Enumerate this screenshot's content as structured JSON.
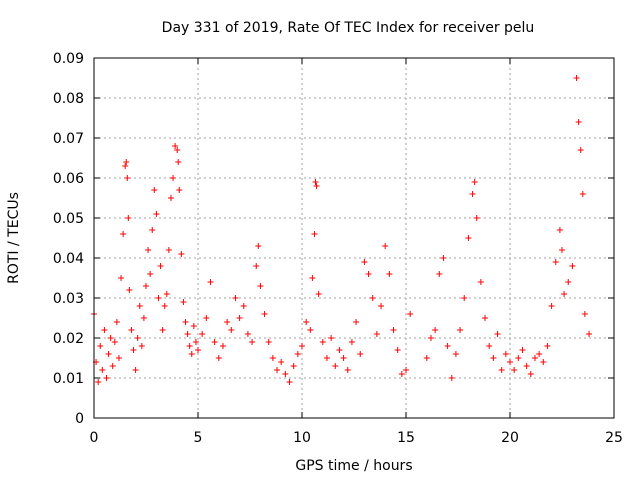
{
  "chart_data": {
    "type": "scatter",
    "title": "Day 331 of 2019, Rate Of TEC Index for receiver pelu",
    "xlabel": "GPS time / hours",
    "ylabel": "ROTI / TECUs",
    "xlim": [
      0,
      25
    ],
    "ylim": [
      0,
      0.09
    ],
    "xticks": [
      0,
      5,
      10,
      15,
      20,
      25
    ],
    "yticks": [
      0,
      0.01,
      0.02,
      0.03,
      0.04,
      0.05,
      0.06,
      0.07,
      0.08,
      0.09
    ],
    "xtick_labels": [
      "0",
      "5",
      "10",
      "15",
      "20",
      "25"
    ],
    "ytick_labels": [
      "0",
      "0.01",
      "0.02",
      "0.03",
      "0.04",
      "0.05",
      "0.06",
      "0.07",
      "0.08",
      "0.09"
    ],
    "grid": true,
    "marker": "+",
    "color": "#ff0000",
    "series": [
      {
        "name": "ROTI",
        "x": [
          0.0,
          0.1,
          0.2,
          0.3,
          0.4,
          0.5,
          0.6,
          0.7,
          0.8,
          0.9,
          1.0,
          1.1,
          1.2,
          1.3,
          1.4,
          1.5,
          1.55,
          1.6,
          1.65,
          1.7,
          1.8,
          1.9,
          2.0,
          2.1,
          2.2,
          2.3,
          2.4,
          2.5,
          2.6,
          2.7,
          2.8,
          2.9,
          3.0,
          3.1,
          3.2,
          3.3,
          3.4,
          3.5,
          3.6,
          3.7,
          3.8,
          3.9,
          4.0,
          4.05,
          4.1,
          4.2,
          4.3,
          4.4,
          4.5,
          4.6,
          4.7,
          4.8,
          4.9,
          5.0,
          5.2,
          5.4,
          5.6,
          5.8,
          6.0,
          6.2,
          6.4,
          6.6,
          6.8,
          7.0,
          7.2,
          7.4,
          7.6,
          7.8,
          7.9,
          8.0,
          8.2,
          8.4,
          8.6,
          8.8,
          9.0,
          9.2,
          9.4,
          9.6,
          9.8,
          10.0,
          10.2,
          10.4,
          10.5,
          10.6,
          10.65,
          10.7,
          10.8,
          11.0,
          11.2,
          11.4,
          11.6,
          11.8,
          12.0,
          12.2,
          12.4,
          12.6,
          12.8,
          13.0,
          13.2,
          13.4,
          13.6,
          13.8,
          14.0,
          14.2,
          14.4,
          14.6,
          14.8,
          15.0,
          15.2,
          16.0,
          16.2,
          16.4,
          16.6,
          16.8,
          17.0,
          17.2,
          17.4,
          17.6,
          17.8,
          18.0,
          18.2,
          18.3,
          18.4,
          18.6,
          18.8,
          19.0,
          19.2,
          19.4,
          19.6,
          19.8,
          20.0,
          20.2,
          20.4,
          20.6,
          20.8,
          21.0,
          21.2,
          21.4,
          21.6,
          21.8,
          22.0,
          22.2,
          22.4,
          22.5,
          22.6,
          22.8,
          23.0,
          23.2,
          23.3,
          23.4,
          23.5,
          23.6,
          23.8
        ],
        "y": [
          0.026,
          0.014,
          0.009,
          0.018,
          0.012,
          0.022,
          0.01,
          0.016,
          0.02,
          0.013,
          0.019,
          0.024,
          0.015,
          0.035,
          0.046,
          0.063,
          0.064,
          0.06,
          0.05,
          0.032,
          0.022,
          0.017,
          0.012,
          0.02,
          0.028,
          0.018,
          0.025,
          0.033,
          0.042,
          0.036,
          0.047,
          0.057,
          0.051,
          0.03,
          0.038,
          0.022,
          0.028,
          0.031,
          0.042,
          0.055,
          0.06,
          0.068,
          0.067,
          0.064,
          0.057,
          0.041,
          0.029,
          0.024,
          0.021,
          0.018,
          0.016,
          0.023,
          0.019,
          0.017,
          0.021,
          0.025,
          0.034,
          0.019,
          0.015,
          0.018,
          0.024,
          0.022,
          0.03,
          0.025,
          0.028,
          0.021,
          0.019,
          0.038,
          0.043,
          0.033,
          0.026,
          0.019,
          0.015,
          0.012,
          0.014,
          0.011,
          0.009,
          0.013,
          0.016,
          0.018,
          0.024,
          0.022,
          0.035,
          0.046,
          0.059,
          0.058,
          0.031,
          0.019,
          0.015,
          0.02,
          0.013,
          0.017,
          0.015,
          0.012,
          0.019,
          0.024,
          0.016,
          0.039,
          0.036,
          0.03,
          0.021,
          0.028,
          0.043,
          0.036,
          0.022,
          0.017,
          0.011,
          0.012,
          0.026,
          0.015,
          0.02,
          0.022,
          0.036,
          0.04,
          0.018,
          0.01,
          0.016,
          0.022,
          0.03,
          0.045,
          0.056,
          0.059,
          0.05,
          0.034,
          0.025,
          0.018,
          0.015,
          0.021,
          0.012,
          0.016,
          0.014,
          0.012,
          0.015,
          0.017,
          0.013,
          0.011,
          0.015,
          0.016,
          0.014,
          0.018,
          0.028,
          0.039,
          0.047,
          0.042,
          0.031,
          0.034,
          0.038,
          0.085,
          0.074,
          0.067,
          0.056,
          0.026,
          0.021
        ]
      }
    ]
  }
}
